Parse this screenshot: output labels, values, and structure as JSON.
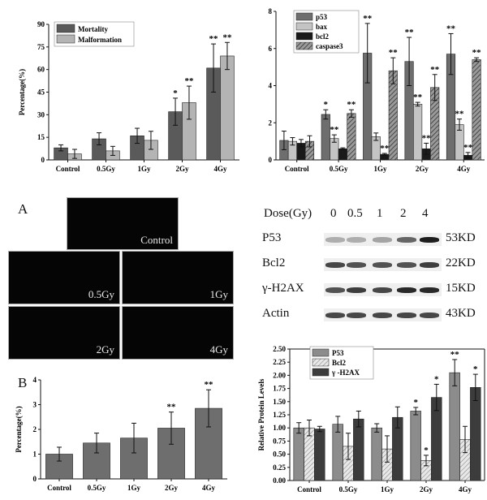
{
  "chart_data": [
    {
      "id": "mortality",
      "type": "bar",
      "categories": [
        "Control",
        "0.5Gy",
        "1Gy",
        "2Gy",
        "4Gy"
      ],
      "ylabel": "Percentage(%)",
      "ylim": [
        0,
        90
      ],
      "yticks": [
        0,
        15,
        30,
        45,
        60,
        75,
        90
      ],
      "legend_position": "top-left",
      "series": [
        {
          "name": "Mortality",
          "color": "#5a5a5a",
          "pattern": "solid",
          "values": [
            8,
            14,
            16,
            32,
            61
          ],
          "errors": [
            2,
            4,
            5,
            9,
            16
          ],
          "stars": [
            "",
            "",
            "",
            "*",
            "**"
          ]
        },
        {
          "name": "Malformation",
          "color": "#b4b4b4",
          "pattern": "solid",
          "values": [
            4,
            6,
            13,
            38,
            69
          ],
          "errors": [
            3,
            3,
            6,
            11,
            9
          ],
          "stars": [
            "",
            "",
            "",
            "**",
            "**"
          ]
        }
      ]
    },
    {
      "id": "gene",
      "type": "bar",
      "categories": [
        "Control",
        "0.5Gy",
        "1Gy",
        "2Gy",
        "4Gy"
      ],
      "ylim": [
        0,
        8
      ],
      "yticks": [
        0,
        2,
        4,
        6,
        8
      ],
      "legend_position": "top-left",
      "series": [
        {
          "name": "p53",
          "color": "#6e6e6e",
          "pattern": "solid",
          "values": [
            1.05,
            2.45,
            5.75,
            5.3,
            5.7
          ],
          "errors": [
            0.5,
            0.25,
            1.6,
            1.3,
            1.1
          ],
          "stars": [
            "",
            "*",
            "**",
            "**",
            "**"
          ]
        },
        {
          "name": "bax",
          "color": "#c4c4c4",
          "pattern": "solid",
          "values": [
            1.0,
            1.15,
            1.25,
            3.0,
            1.9
          ],
          "errors": [
            0.2,
            0.2,
            0.2,
            0.1,
            0.3
          ],
          "stars": [
            "",
            "**",
            "",
            "**",
            "**"
          ]
        },
        {
          "name": "bcl2",
          "color": "#1a1a1a",
          "pattern": "solid",
          "values": [
            0.9,
            0.6,
            0.3,
            0.6,
            0.25
          ],
          "errors": [
            0.2,
            0.05,
            0.05,
            0.3,
            0.15
          ],
          "stars": [
            "",
            "",
            "**",
            "**",
            "**"
          ]
        },
        {
          "name": "caspase3",
          "color": "#555555",
          "pattern": "hatch",
          "values": [
            1.0,
            2.5,
            4.8,
            3.9,
            5.4
          ],
          "errors": [
            0.3,
            0.2,
            0.7,
            0.7,
            0.1
          ],
          "stars": [
            "",
            "**",
            "**",
            "**",
            "**"
          ]
        }
      ]
    },
    {
      "id": "fluorescence",
      "type": "bar",
      "categories": [
        "Control",
        "0.5Gy",
        "1Gy",
        "2Gy",
        "4Gy"
      ],
      "ylabel": "Percentage(%)",
      "ylim": [
        0,
        4
      ],
      "yticks": [
        0,
        1,
        2,
        3,
        4
      ],
      "series": [
        {
          "name": "",
          "color": "#6e6e6e",
          "pattern": "solid",
          "values": [
            1.0,
            1.45,
            1.65,
            2.05,
            2.85
          ],
          "errors": [
            0.28,
            0.4,
            0.6,
            0.65,
            0.75
          ],
          "stars": [
            "",
            "",
            "",
            "**",
            "**"
          ]
        }
      ]
    },
    {
      "id": "protein",
      "type": "bar",
      "categories": [
        "Control",
        "0.5Gy",
        "1Gy",
        "2Gy",
        "4Gy"
      ],
      "ylabel": "Relative Protein Levels",
      "ylim": [
        0,
        2.5
      ],
      "yticks": [
        0.0,
        0.25,
        0.5,
        0.75,
        1.0,
        1.25,
        1.5,
        1.75,
        2.0,
        2.25,
        2.5
      ],
      "legend_position": "top-left",
      "series": [
        {
          "name": "P53",
          "color": "#8c8c8c",
          "pattern": "solid",
          "values": [
            1.0,
            1.07,
            1.0,
            1.32,
            2.05
          ],
          "errors": [
            0.1,
            0.15,
            0.08,
            0.07,
            0.25
          ],
          "stars": [
            "",
            "",
            "",
            "*",
            "**"
          ]
        },
        {
          "name": "Bcl2",
          "color": "#d8d8d8",
          "pattern": "hatch-light",
          "values": [
            1.0,
            0.65,
            0.6,
            0.38,
            0.78
          ],
          "errors": [
            0.15,
            0.25,
            0.25,
            0.1,
            0.25
          ],
          "stars": [
            "",
            "",
            "",
            "*",
            ""
          ]
        },
        {
          "name": "γ -H2AX",
          "color": "#3c3c3c",
          "pattern": "solid",
          "values": [
            0.98,
            1.17,
            1.2,
            1.58,
            1.77
          ],
          "errors": [
            0.05,
            0.15,
            0.2,
            0.25,
            0.25
          ],
          "stars": [
            "",
            "",
            "",
            "*",
            "*"
          ]
        }
      ]
    }
  ],
  "panel_a": {
    "letter": "A",
    "images": [
      "Control",
      "0.5Gy",
      "1Gy",
      "2Gy",
      "4Gy"
    ]
  },
  "panel_b": {
    "letter": "B"
  },
  "western": {
    "dose_label": "Dose(Gy)",
    "doses": [
      "0",
      "0.5",
      "1",
      "2",
      "4"
    ],
    "rows": [
      {
        "protein": "P53",
        "kd": "53KD",
        "intensity": [
          0.25,
          0.25,
          0.3,
          0.6,
          0.95
        ]
      },
      {
        "protein": "Bcl2",
        "kd": "22KD",
        "intensity": [
          0.75,
          0.7,
          0.7,
          0.7,
          0.8
        ]
      },
      {
        "protein": "γ-H2AX",
        "kd": "15KD",
        "intensity": [
          0.7,
          0.8,
          0.75,
          0.9,
          0.9
        ]
      },
      {
        "protein": "Actin",
        "kd": "43KD",
        "intensity": [
          0.75,
          0.75,
          0.75,
          0.75,
          0.75
        ]
      }
    ]
  },
  "colors": {
    "background": "#ffffff",
    "axis": "#111111"
  }
}
